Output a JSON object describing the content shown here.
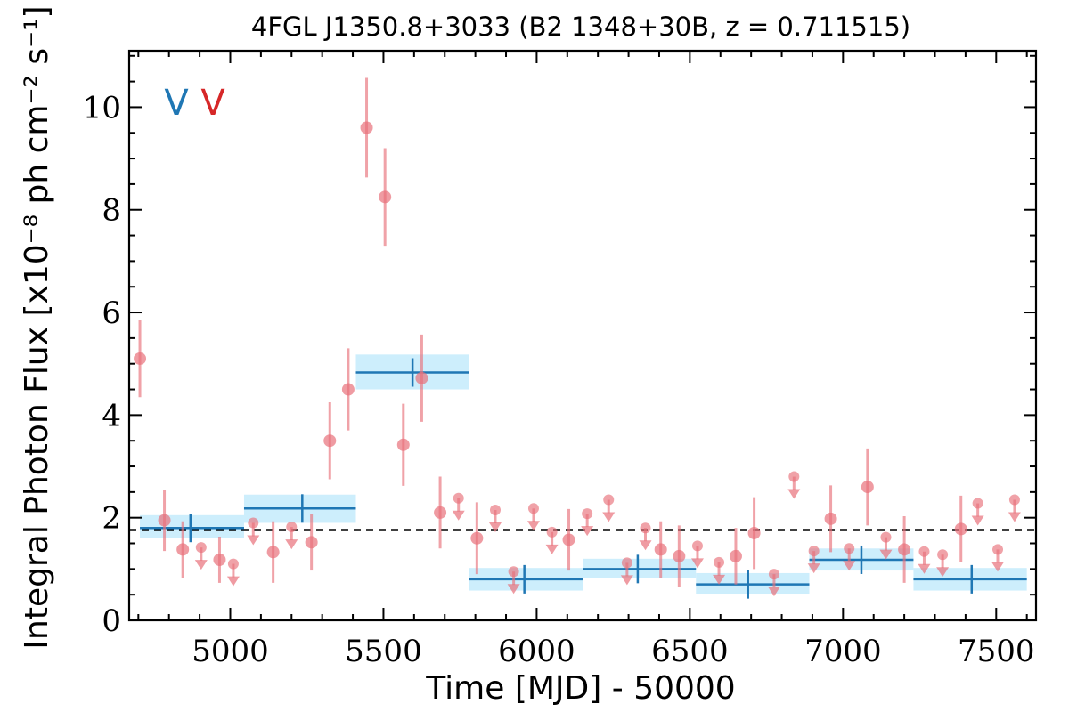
{
  "chart_data": {
    "type": "scatter",
    "title": "4FGL J1350.8+3033 (B2 1348+30B, z = 0.711515)",
    "xlabel": "Time [MJD] - 50000",
    "ylabel": "Integral Photon Flux [x10⁻⁸ ph cm⁻² s⁻¹]",
    "xlim": [
      4670,
      7630
    ],
    "ylim": [
      0,
      11.1
    ],
    "xticks": [
      "5000",
      "5500",
      "6000",
      "6500",
      "7000",
      "7500"
    ],
    "yticks": [
      "0",
      "2",
      "4",
      "6",
      "8",
      "10"
    ],
    "xtick_values": [
      5000,
      5500,
      6000,
      6500,
      7000,
      7500
    ],
    "ytick_values": [
      0,
      2,
      4,
      6,
      8,
      10
    ],
    "markers_text": [
      "V",
      "V"
    ],
    "marker_colors": [
      "#1f77b4",
      "#d62728"
    ],
    "reference_level": 1.76,
    "colors": {
      "points": "#e8707a",
      "bins": "#1f77b4",
      "bin_fill": "#cdeefc"
    },
    "detections": [
      {
        "x": 4705,
        "y": 5.1,
        "err": 0.75
      },
      {
        "x": 4785,
        "y": 1.95,
        "err": 0.6
      },
      {
        "x": 4845,
        "y": 1.38,
        "err": 0.55
      },
      {
        "x": 4965,
        "y": 1.18,
        "err": 0.45
      },
      {
        "x": 5140,
        "y": 1.33,
        "err": 0.6
      },
      {
        "x": 5265,
        "y": 1.52,
        "err": 0.55
      },
      {
        "x": 5325,
        "y": 3.5,
        "err": 0.75
      },
      {
        "x": 5385,
        "y": 4.5,
        "err": 0.8
      },
      {
        "x": 5445,
        "y": 9.6,
        "err": 0.97
      },
      {
        "x": 5505,
        "y": 8.25,
        "err": 0.95
      },
      {
        "x": 5565,
        "y": 3.42,
        "err": 0.8
      },
      {
        "x": 5625,
        "y": 4.72,
        "err": 0.85
      },
      {
        "x": 5685,
        "y": 2.1,
        "err": 0.7
      },
      {
        "x": 5805,
        "y": 1.6,
        "err": 0.7
      },
      {
        "x": 6105,
        "y": 1.57,
        "err": 0.6
      },
      {
        "x": 6405,
        "y": 1.38,
        "err": 0.55
      },
      {
        "x": 6465,
        "y": 1.25,
        "err": 0.6
      },
      {
        "x": 6650,
        "y": 1.25,
        "err": 0.55
      },
      {
        "x": 6710,
        "y": 1.7,
        "err": 0.7
      },
      {
        "x": 6960,
        "y": 1.98,
        "err": 0.65
      },
      {
        "x": 7080,
        "y": 2.6,
        "err": 0.75
      },
      {
        "x": 7200,
        "y": 1.38,
        "err": 0.65
      },
      {
        "x": 7385,
        "y": 1.78,
        "err": 0.65
      }
    ],
    "upper_limits": [
      {
        "x": 4905,
        "y": 1.42
      },
      {
        "x": 5010,
        "y": 1.1
      },
      {
        "x": 5075,
        "y": 1.9
      },
      {
        "x": 5200,
        "y": 1.82
      },
      {
        "x": 5745,
        "y": 2.38
      },
      {
        "x": 5865,
        "y": 2.15
      },
      {
        "x": 5925,
        "y": 0.95
      },
      {
        "x": 5990,
        "y": 2.18
      },
      {
        "x": 6050,
        "y": 1.72
      },
      {
        "x": 6165,
        "y": 2.08
      },
      {
        "x": 6235,
        "y": 2.35
      },
      {
        "x": 6295,
        "y": 1.12
      },
      {
        "x": 6355,
        "y": 1.8
      },
      {
        "x": 6525,
        "y": 1.45
      },
      {
        "x": 6595,
        "y": 1.13
      },
      {
        "x": 6775,
        "y": 0.9
      },
      {
        "x": 6840,
        "y": 2.8
      },
      {
        "x": 6905,
        "y": 1.35
      },
      {
        "x": 7020,
        "y": 1.4
      },
      {
        "x": 7140,
        "y": 1.62
      },
      {
        "x": 7265,
        "y": 1.34
      },
      {
        "x": 7325,
        "y": 1.28
      },
      {
        "x": 7440,
        "y": 2.28
      },
      {
        "x": 7505,
        "y": 1.38
      },
      {
        "x": 7560,
        "y": 2.35
      }
    ],
    "bins": [
      {
        "x0": 4705,
        "x1": 5045,
        "y": 1.8,
        "ylo": 1.6,
        "yhi": 2.05,
        "xc": 4870
      },
      {
        "x0": 5045,
        "x1": 5410,
        "y": 2.18,
        "ylo": 1.9,
        "yhi": 2.45,
        "xc": 5235
      },
      {
        "x0": 5410,
        "x1": 5780,
        "y": 4.83,
        "ylo": 4.5,
        "yhi": 5.18,
        "xc": 5595
      },
      {
        "x0": 5780,
        "x1": 6150,
        "y": 0.8,
        "ylo": 0.58,
        "yhi": 1.02,
        "xc": 5960
      },
      {
        "x0": 6150,
        "x1": 6520,
        "y": 1.0,
        "ylo": 0.82,
        "yhi": 1.2,
        "xc": 6330
      },
      {
        "x0": 6520,
        "x1": 6890,
        "y": 0.7,
        "ylo": 0.52,
        "yhi": 0.92,
        "xc": 6690
      },
      {
        "x0": 6890,
        "x1": 7230,
        "y": 1.18,
        "ylo": 0.97,
        "yhi": 1.4,
        "xc": 7060
      },
      {
        "x0": 7230,
        "x1": 7600,
        "y": 0.8,
        "ylo": 0.58,
        "yhi": 1.02,
        "xc": 7420
      }
    ]
  }
}
